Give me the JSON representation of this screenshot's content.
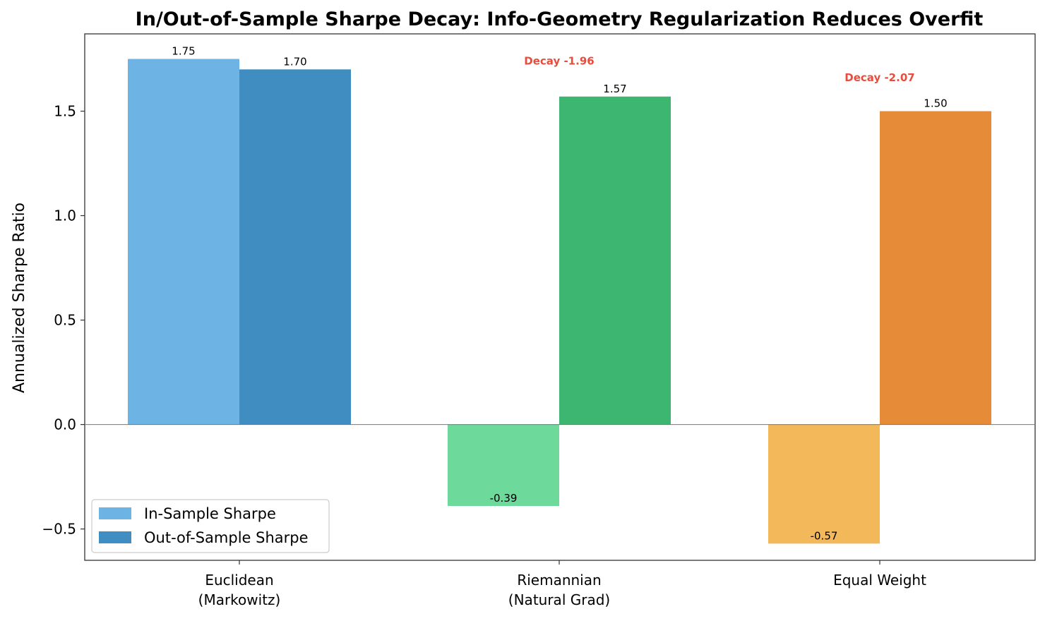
{
  "chart_data": {
    "type": "bar",
    "title": "In/Out-of-Sample Sharpe Decay: Info-Geometry Regularization Reduces Overfit",
    "xlabel": "",
    "ylabel": "Annualized Sharpe Ratio",
    "categories": [
      [
        "Euclidean",
        "(Markowitz)"
      ],
      [
        "Riemannian",
        "(Natural Grad)"
      ],
      [
        "Equal Weight"
      ]
    ],
    "series": [
      {
        "name": "In-Sample Sharpe",
        "values": [
          1.75,
          -0.39,
          -0.57
        ],
        "colors": [
          "#6db3e3",
          "#6dd99b",
          "#f3b85a"
        ],
        "labels": [
          "1.75",
          "-0.39",
          "-0.57"
        ]
      },
      {
        "name": "Out-of-Sample Sharpe",
        "values": [
          1.7,
          1.57,
          1.5
        ],
        "colors": [
          "#3f8dc1",
          "#3db672",
          "#e68b38"
        ],
        "labels": [
          "1.70",
          "1.57",
          "1.50"
        ]
      }
    ],
    "annotations": [
      {
        "category_index": 1,
        "text": "Decay -1.96",
        "y": 1.74,
        "color": "#e74c3c"
      },
      {
        "category_index": 2,
        "text": "Decay -2.07",
        "y": 1.66,
        "color": "#e74c3c"
      }
    ],
    "ylim": [
      -0.65,
      1.87
    ],
    "yticks": [
      -0.5,
      0.0,
      0.5,
      1.0,
      1.5
    ],
    "ytick_labels": [
      "−0.5",
      "0.0",
      "0.5",
      "1.0",
      "1.5"
    ],
    "legend_position": "lower-left",
    "grid": false,
    "zero_line": true
  }
}
